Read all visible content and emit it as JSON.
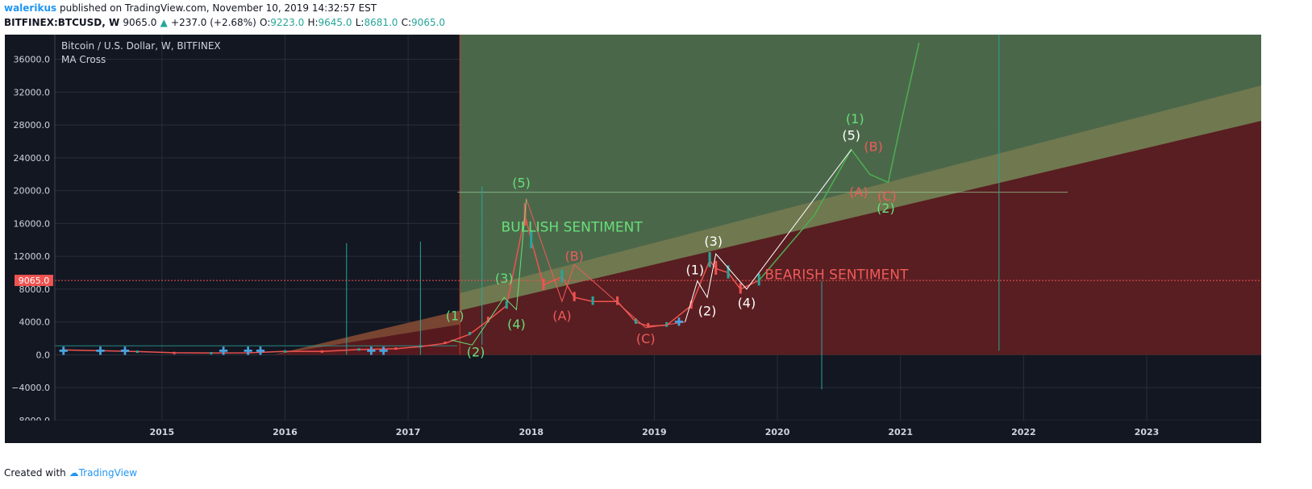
{
  "header": {
    "user": "walerikus",
    "published": "published on TradingView.com, November 10, 2019 14:32:57 EST",
    "symbol": "BITFINEX:BTCUSD, W",
    "price": "9065.0",
    "change": "+237.0 (+2.68%)",
    "o_label": "O:",
    "o_value": "9223.0",
    "h_label": "H:",
    "h_value": "9645.0",
    "l_label": "L:",
    "l_value": "8681.0",
    "c_label": "C:",
    "c_value": "9065.0"
  },
  "footer": {
    "created_with": "Created with",
    "brand": "TradingView"
  },
  "colors": {
    "background": "#131722",
    "bull_zone": "#4e6b4d",
    "bear_zone": "#5a1a1f",
    "channel": "#b7975a",
    "up": "#26a69a",
    "down": "#ef5350",
    "green_label": "#66e07a",
    "red_label": "#ef5b5b",
    "white_label": "#ffffff",
    "price_line": "#ef5350"
  },
  "chart_data": {
    "type": "line",
    "title": "Bitcoin / U.S. Dollar, W, BITFINEX",
    "subtitle": "MA Cross",
    "xlabel": "",
    "ylabel": "",
    "xlim": [
      2014.13,
      2023.93
    ],
    "ylim": [
      -8000,
      39000
    ],
    "y_ticks": [
      -8000,
      -4000,
      0,
      4000,
      8000,
      12000,
      16000,
      20000,
      24000,
      28000,
      32000,
      36000
    ],
    "y_tick_labels": [
      "−8000.0",
      "−4000.0",
      "0.0",
      "4000.0",
      "8000.0",
      "12000.0",
      "16000.0",
      "20000.0",
      "24000.0",
      "28000.0",
      "32000.0",
      "36000.0"
    ],
    "x_ticks": [
      2015,
      2016,
      2017,
      2018,
      2019,
      2020,
      2021,
      2022,
      2023
    ],
    "x_tick_labels": [
      "2015",
      "2016",
      "2017",
      "2018",
      "2019",
      "2020",
      "2021",
      "2022",
      "2023"
    ],
    "current_price": 9065.0,
    "current_price_label": "9065.0",
    "grid": true,
    "series": [
      {
        "x": [
          2014.2,
          2014.5,
          2014.8,
          2015.1,
          2015.4,
          2015.7,
          2016.0,
          2016.3,
          2016.6,
          2016.9,
          2017.1,
          2017.3,
          2017.5,
          2017.65,
          2017.8,
          2017.95,
          2018.0,
          2018.1,
          2018.25,
          2018.35,
          2018.5,
          2018.7,
          2018.85,
          2018.95,
          2019.1,
          2019.3,
          2019.45,
          2019.5,
          2019.6,
          2019.7,
          2019.85
        ],
        "y": [
          600,
          500,
          400,
          250,
          230,
          240,
          430,
          420,
          650,
          750,
          1000,
          1400,
          2500,
          4200,
          6000,
          17000,
          14000,
          8500,
          9500,
          7000,
          6500,
          6500,
          4000,
          3500,
          3600,
          6000,
          11500,
          10500,
          10000,
          8000,
          9065
        ]
      },
      {
        "x": [
          2019.85,
          2020.3,
          2020.6,
          2020.75,
          2020.9,
          2021.0,
          2021.15
        ],
        "y": [
          9065,
          17000,
          25000,
          22000,
          21000,
          28000,
          38000
        ]
      }
    ],
    "zones": [
      {
        "label": "BULLISH SENTIMENT",
        "x": [
          2017.42,
          2023.93
        ],
        "y": [
          0,
          39000
        ]
      },
      {
        "label": "BEARISH SENTIMENT",
        "x": [
          2015.9,
          2023.93
        ],
        "y": [
          0,
          28500
        ]
      }
    ],
    "annotations": [
      {
        "text": "BULLISH SENTIMENT",
        "x": 2018.33,
        "y": 15000,
        "color": "green"
      },
      {
        "text": "BEARISH SENTIMENT",
        "x": 2020.48,
        "y": 9200,
        "color": "red"
      },
      {
        "text": "(1)",
        "x": 2017.38,
        "y": 4200,
        "color": "green"
      },
      {
        "text": "(2)",
        "x": 2017.55,
        "y": -200,
        "color": "green"
      },
      {
        "text": "(3)",
        "x": 2017.78,
        "y": 8800,
        "color": "green"
      },
      {
        "text": "(4)",
        "x": 2017.88,
        "y": 3200,
        "color": "green"
      },
      {
        "text": "(5)",
        "x": 2017.92,
        "y": 20400,
        "color": "green"
      },
      {
        "text": "(A)",
        "x": 2018.25,
        "y": 4200,
        "color": "red"
      },
      {
        "text": "(B)",
        "x": 2018.35,
        "y": 11500,
        "color": "red"
      },
      {
        "text": "(C)",
        "x": 2018.93,
        "y": 1400,
        "color": "red"
      },
      {
        "text": "(1)",
        "x": 2019.33,
        "y": 9800,
        "color": "white"
      },
      {
        "text": "(2)",
        "x": 2019.43,
        "y": 4800,
        "color": "white"
      },
      {
        "text": "(3)",
        "x": 2019.48,
        "y": 13300,
        "color": "white"
      },
      {
        "text": "(4)",
        "x": 2019.75,
        "y": 5800,
        "color": "white"
      },
      {
        "text": "(5)",
        "x": 2020.6,
        "y": 26200,
        "color": "white"
      },
      {
        "text": "(1)",
        "x": 2020.63,
        "y": 28200,
        "color": "green"
      },
      {
        "text": "(B)",
        "x": 2020.78,
        "y": 24800,
        "color": "red"
      },
      {
        "text": "(A)",
        "x": 2020.66,
        "y": 19300,
        "color": "red"
      },
      {
        "text": "(C)",
        "x": 2020.89,
        "y": 18800,
        "color": "red"
      },
      {
        "text": "(2)",
        "x": 2020.88,
        "y": 17300,
        "color": "green"
      }
    ]
  }
}
